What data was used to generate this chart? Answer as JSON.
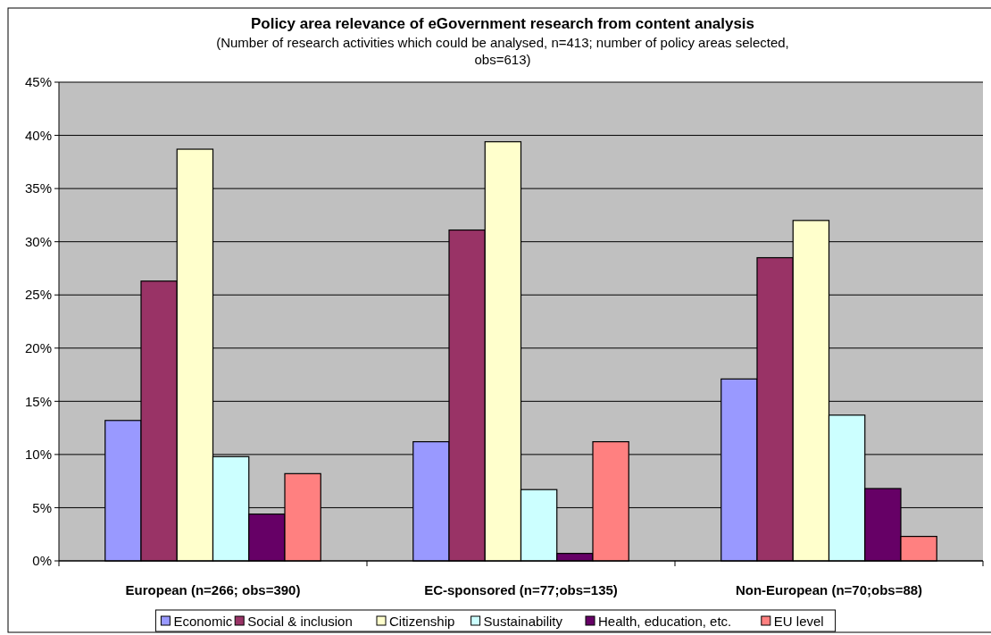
{
  "chart_data": {
    "type": "bar",
    "title": "Policy area relevance of eGovernment research from content analysis",
    "subtitle": "(Number of research activities which could be analysed, n=413; number of policy areas selected, obs=613)",
    "categories": [
      "European (n=266; obs=390)",
      "EC-sponsored (n=77;obs=135)",
      "Non-European (n=70;obs=88)"
    ],
    "series": [
      {
        "name": "Economic",
        "color": "#9999ff",
        "values": [
          13.2,
          11.2,
          17.1
        ]
      },
      {
        "name": "Social & inclusion",
        "color": "#993366",
        "values": [
          26.3,
          31.1,
          28.5
        ]
      },
      {
        "name": "Citizenship",
        "color": "#ffffcc",
        "values": [
          38.7,
          39.4,
          32.0
        ]
      },
      {
        "name": "Sustainability",
        "color": "#ccffff",
        "values": [
          9.8,
          6.7,
          13.7
        ]
      },
      {
        "name": "Health, education, etc.",
        "color": "#660066",
        "values": [
          4.4,
          0.7,
          6.8
        ]
      },
      {
        "name": "EU level",
        "color": "#ff8080",
        "values": [
          8.2,
          11.2,
          2.3
        ]
      }
    ],
    "ylim": [
      0,
      45
    ],
    "yticks": [
      {
        "value": 0,
        "label": "0%"
      },
      {
        "value": 5,
        "label": "5%"
      },
      {
        "value": 10,
        "label": "10%"
      },
      {
        "value": 15,
        "label": "15%"
      },
      {
        "value": 20,
        "label": "20%"
      },
      {
        "value": 25,
        "label": "25%"
      },
      {
        "value": 30,
        "label": "30%"
      },
      {
        "value": 35,
        "label": "35%"
      },
      {
        "value": 40,
        "label": "40%"
      },
      {
        "value": 45,
        "label": "45%"
      }
    ],
    "grid": "y",
    "legend": "bottom"
  }
}
